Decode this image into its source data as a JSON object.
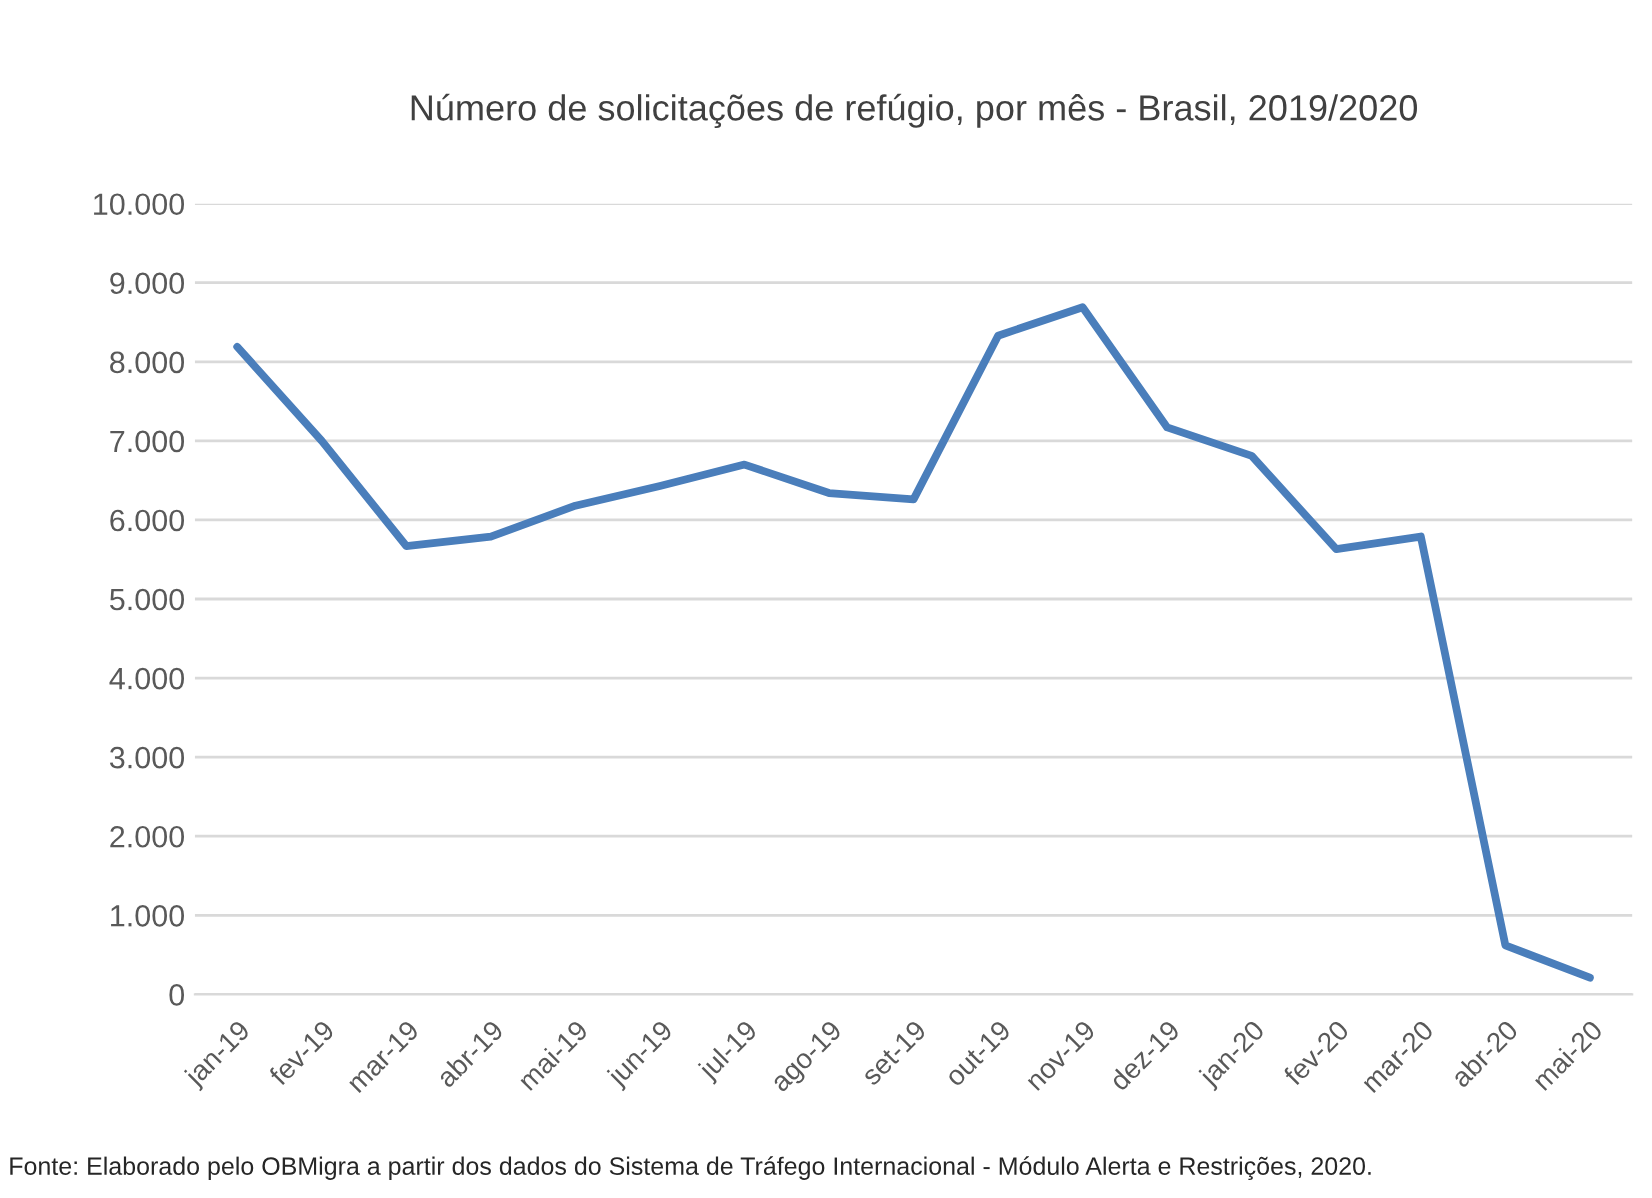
{
  "chart_data": {
    "type": "line",
    "title": "Número de solicitações de refúgio, por mês - Brasil, 2019/2020",
    "categories": [
      "jan-19",
      "fev-19",
      "mar-19",
      "abr-19",
      "mai-19",
      "jun-19",
      "jul-19",
      "ago-19",
      "set-19",
      "out-19",
      "nov-19",
      "dez-19",
      "jan-20",
      "fev-20",
      "mar-20",
      "abr-20",
      "mai-20"
    ],
    "series": [
      {
        "color": "#4a7ebb",
        "values": [
          8190,
          7000,
          5670,
          5790,
          6180,
          6430,
          6700,
          6340,
          6260,
          8330,
          8690,
          7170,
          6810,
          5630,
          5790,
          620,
          210
        ]
      }
    ],
    "ylim": [
      0,
      10000
    ],
    "yticks": [
      {
        "value": 0,
        "label": "0"
      },
      {
        "value": 1000,
        "label": "1.000"
      },
      {
        "value": 2000,
        "label": "2.000"
      },
      {
        "value": 3000,
        "label": "3.000"
      },
      {
        "value": 4000,
        "label": "4.000"
      },
      {
        "value": 5000,
        "label": "5.000"
      },
      {
        "value": 6000,
        "label": "6.000"
      },
      {
        "value": 7000,
        "label": "7.000"
      },
      {
        "value": 8000,
        "label": "8.000"
      },
      {
        "value": 9000,
        "label": "9.000"
      },
      {
        "value": 10000,
        "label": "10.000"
      }
    ],
    "grid": "y",
    "legend": false,
    "marker": "none",
    "line_style": "solid",
    "annotations": [
      "Fonte: Elaborado pelo OBMigra a partir dos dados do Sistema de Tráfego Internacional - Módulo Alerta e Restrições, 2020."
    ]
  }
}
